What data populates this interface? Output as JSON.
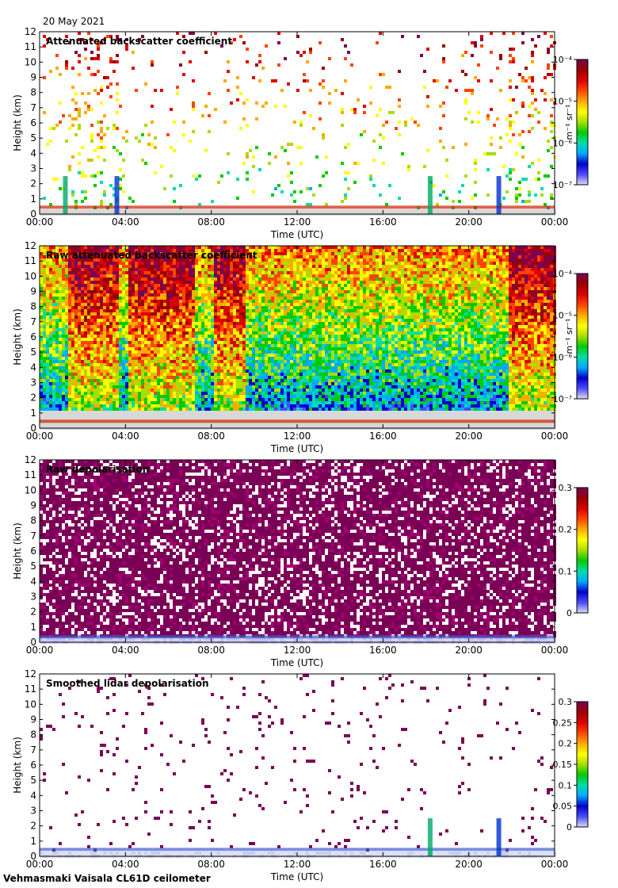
{
  "date": "20 May 2021",
  "footer": "Vehmasmaki Vaisala CL61D ceilometer",
  "colorscale": [
    "#ddddf0",
    "#4b4bff",
    "#0000cc",
    "#00aaff",
    "#00ddaa",
    "#00cc00",
    "#aadd00",
    "#ffff00",
    "#ffaa00",
    "#ff4400",
    "#dd0000",
    "#990000",
    "#7a0055"
  ],
  "chart_data": [
    {
      "type": "heatmap",
      "title": "Attenuated backscatter coefficient",
      "xlabel": "Time (UTC)",
      "ylabel": "Height (km)",
      "x_ticks": [
        "00:00",
        "04:00",
        "08:00",
        "12:00",
        "16:00",
        "20:00",
        "00:00"
      ],
      "y_ticks": [
        "0",
        "1",
        "2",
        "3",
        "4",
        "5",
        "6",
        "7",
        "8",
        "9",
        "10",
        "11",
        "12"
      ],
      "ylim": [
        0,
        12
      ],
      "colorbar": {
        "unit": "m⁻¹ sr⁻¹",
        "scale": "log",
        "range": [
          1e-07,
          0.0001
        ],
        "tick_labels": [
          "10⁻⁷",
          "10⁻⁶",
          "10⁻⁵",
          "10⁻⁴"
        ]
      },
      "features": {
        "noise": "sparse",
        "surface_layer_km": 0.4,
        "cloud_events_hours": [
          1.2,
          3.6,
          18.2,
          21.4
        ]
      }
    },
    {
      "type": "heatmap",
      "title": "Raw attenuated backscatter coefficient",
      "xlabel": "Time (UTC)",
      "ylabel": "Height (km)",
      "x_ticks": [
        "00:00",
        "04:00",
        "08:00",
        "12:00",
        "16:00",
        "20:00",
        "00:00"
      ],
      "y_ticks": [
        "0",
        "1",
        "2",
        "3",
        "4",
        "5",
        "6",
        "7",
        "8",
        "9",
        "10",
        "11",
        "12"
      ],
      "ylim": [
        0,
        12
      ],
      "colorbar": {
        "unit": "m⁻¹ sr⁻¹",
        "scale": "log",
        "range": [
          1e-07,
          0.0001
        ],
        "tick_labels": [
          "10⁻⁷",
          "10⁻⁶",
          "10⁻⁵",
          "10⁻⁴"
        ]
      },
      "features": {
        "noise": "dense",
        "surface_layer_km": 0.4
      }
    },
    {
      "type": "heatmap",
      "title": "Raw depolarisation",
      "xlabel": "Time (UTC)",
      "ylabel": "Height (km)",
      "x_ticks": [
        "00:00",
        "04:00",
        "08:00",
        "12:00",
        "16:00",
        "20:00",
        "00:00"
      ],
      "y_ticks": [
        "0",
        "1",
        "2",
        "3",
        "4",
        "5",
        "6",
        "7",
        "8",
        "9",
        "10",
        "11",
        "12"
      ],
      "ylim": [
        0,
        12
      ],
      "colorbar": {
        "unit": "",
        "scale": "linear",
        "range": [
          0,
          0.3
        ],
        "tick_labels": [
          "0",
          "0.1",
          "0.2",
          "0.3"
        ]
      },
      "features": {
        "noise": "saturated",
        "surface_layer_km": 0.3
      }
    },
    {
      "type": "heatmap",
      "title": "Smoothed lidar depolarisation",
      "xlabel": "Time (UTC)",
      "ylabel": "Height (km)",
      "x_ticks": [
        "00:00",
        "04:00",
        "08:00",
        "12:00",
        "16:00",
        "20:00",
        "00:00"
      ],
      "y_ticks": [
        "0",
        "1",
        "2",
        "3",
        "4",
        "5",
        "6",
        "7",
        "8",
        "9",
        "10",
        "11",
        "12"
      ],
      "ylim": [
        0,
        12
      ],
      "colorbar": {
        "unit": "",
        "scale": "linear",
        "range": [
          0,
          0.3
        ],
        "tick_labels": [
          "0",
          "0.05",
          "0.1",
          "0.15",
          "0.2",
          "0.25",
          "0.3"
        ]
      },
      "features": {
        "noise": "sparse-purple",
        "surface_layer_km": 0.4,
        "cloud_events_hours": [
          18.2,
          21.4
        ]
      }
    }
  ]
}
